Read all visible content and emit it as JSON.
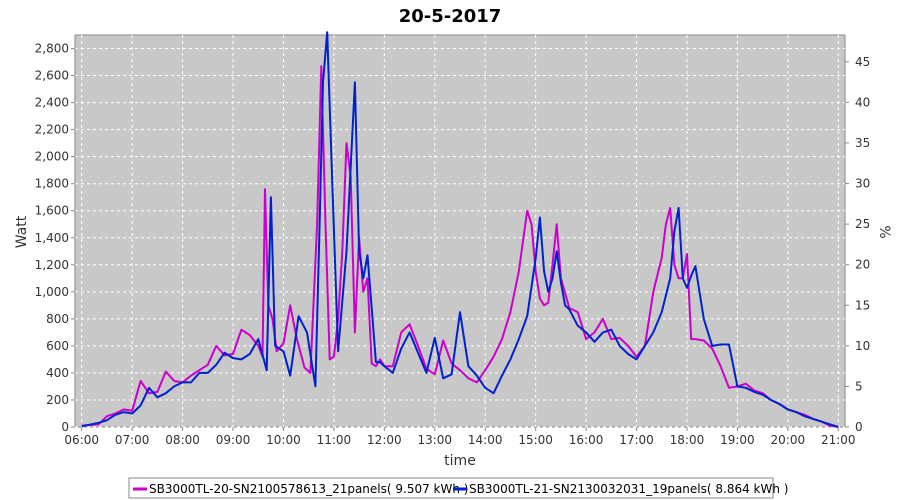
{
  "chart_data": {
    "type": "line",
    "title": "20-5-2017",
    "xlabel": "time",
    "ylabel": "Watt",
    "y2label": "%",
    "grid": true,
    "legend_position": "bottom",
    "xlim": [
      "05:52",
      "21:08"
    ],
    "ylim": [
      0,
      2900
    ],
    "y2lim": [
      0,
      48.3
    ],
    "x_ticks": [
      "06:00",
      "07:00",
      "08:00",
      "09:00",
      "10:00",
      "11:00",
      "12:00",
      "13:00",
      "14:00",
      "15:00",
      "16:00",
      "17:00",
      "18:00",
      "19:00",
      "20:00",
      "21:00"
    ],
    "y_ticks": [
      "0",
      "200",
      "400",
      "600",
      "800",
      "1,000",
      "1,200",
      "1,400",
      "1,600",
      "1,800",
      "2,000",
      "2,200",
      "2,400",
      "2,600",
      "2,800"
    ],
    "y2_ticks": [
      "0",
      "5",
      "10",
      "15",
      "20",
      "25",
      "30",
      "35",
      "40",
      "45"
    ],
    "colors": {
      "plot_bg": "#c8c8c8",
      "grid": "#ffffff"
    },
    "series": [
      {
        "name": "SB3000TL-20-SN2100578613_21panels( 9.507 kWh )",
        "color": "#cc00cc",
        "x": [
          "06:00",
          "06:20",
          "06:30",
          "06:40",
          "06:50",
          "07:00",
          "07:10",
          "07:20",
          "07:30",
          "07:40",
          "07:50",
          "08:00",
          "08:10",
          "08:20",
          "08:30",
          "08:40",
          "08:50",
          "09:00",
          "09:10",
          "09:20",
          "09:30",
          "09:35",
          "09:38",
          "09:42",
          "09:47",
          "09:52",
          "10:00",
          "10:08",
          "10:16",
          "10:25",
          "10:32",
          "10:40",
          "10:45",
          "10:50",
          "10:55",
          "11:00",
          "11:05",
          "11:10",
          "11:15",
          "11:20",
          "11:25",
          "11:30",
          "11:35",
          "11:40",
          "11:45",
          "11:50",
          "11:55",
          "12:00",
          "12:10",
          "12:20",
          "12:30",
          "12:40",
          "12:50",
          "13:00",
          "13:10",
          "13:20",
          "13:30",
          "13:40",
          "13:50",
          "14:00",
          "14:10",
          "14:20",
          "14:30",
          "14:40",
          "14:50",
          "14:55",
          "15:00",
          "15:05",
          "15:10",
          "15:15",
          "15:20",
          "15:25",
          "15:30",
          "15:40",
          "15:50",
          "16:00",
          "16:10",
          "16:20",
          "16:30",
          "16:40",
          "16:50",
          "17:00",
          "17:10",
          "17:20",
          "17:30",
          "17:35",
          "17:40",
          "17:45",
          "17:50",
          "17:55",
          "18:00",
          "18:05",
          "18:10",
          "18:20",
          "18:30",
          "18:40",
          "18:50",
          "19:00",
          "19:10",
          "19:20",
          "19:30",
          "19:40",
          "19:50",
          "20:00",
          "20:10",
          "20:20",
          "20:30",
          "20:40",
          "20:50",
          "21:00"
        ],
        "y": [
          10,
          20,
          80,
          100,
          130,
          120,
          340,
          250,
          260,
          410,
          340,
          330,
          380,
          420,
          460,
          600,
          530,
          540,
          720,
          680,
          600,
          520,
          1760,
          900,
          800,
          560,
          620,
          900,
          650,
          440,
          400,
          1500,
          2670,
          1500,
          500,
          520,
          800,
          1300,
          2100,
          1850,
          700,
          1400,
          1000,
          1100,
          470,
          450,
          500,
          450,
          450,
          700,
          760,
          600,
          430,
          390,
          640,
          470,
          420,
          360,
          330,
          420,
          520,
          650,
          850,
          1150,
          1600,
          1500,
          1150,
          950,
          900,
          920,
          1200,
          1500,
          1100,
          880,
          850,
          650,
          700,
          800,
          650,
          660,
          600,
          520,
          600,
          1000,
          1250,
          1500,
          1620,
          1200,
          1100,
          1100,
          1280,
          650,
          650,
          640,
          580,
          450,
          290,
          300,
          320,
          270,
          250,
          200,
          170,
          130,
          110,
          90,
          60,
          40,
          10,
          0
        ]
      },
      {
        "name": "SB3000TL-21-SN2130032031_19panels( 8.864 kWh )",
        "color": "#0022cc",
        "x": [
          "06:00",
          "06:20",
          "06:30",
          "06:40",
          "06:50",
          "07:00",
          "07:10",
          "07:20",
          "07:30",
          "07:40",
          "07:50",
          "08:00",
          "08:10",
          "08:20",
          "08:30",
          "08:40",
          "08:50",
          "09:00",
          "09:10",
          "09:20",
          "09:30",
          "09:40",
          "09:45",
          "09:50",
          "10:00",
          "10:08",
          "10:18",
          "10:28",
          "10:38",
          "10:43",
          "10:47",
          "10:52",
          "10:57",
          "11:05",
          "11:15",
          "11:25",
          "11:30",
          "11:35",
          "11:40",
          "11:45",
          "11:50",
          "11:55",
          "12:00",
          "12:10",
          "12:20",
          "12:30",
          "12:40",
          "12:50",
          "13:00",
          "13:10",
          "13:20",
          "13:30",
          "13:40",
          "13:50",
          "14:00",
          "14:10",
          "14:20",
          "14:30",
          "14:40",
          "14:50",
          "15:00",
          "15:05",
          "15:10",
          "15:15",
          "15:20",
          "15:25",
          "15:30",
          "15:35",
          "15:40",
          "15:50",
          "16:00",
          "16:10",
          "16:20",
          "16:30",
          "16:40",
          "16:50",
          "17:00",
          "17:10",
          "17:20",
          "17:30",
          "17:40",
          "17:45",
          "17:50",
          "17:55",
          "18:00",
          "18:05",
          "18:10",
          "18:20",
          "18:30",
          "18:40",
          "18:50",
          "19:00",
          "19:10",
          "19:20",
          "19:30",
          "19:40",
          "19:50",
          "20:00",
          "20:10",
          "20:20",
          "20:30",
          "20:40",
          "20:50",
          "21:00"
        ],
        "y": [
          5,
          30,
          50,
          90,
          110,
          100,
          160,
          290,
          220,
          250,
          300,
          330,
          330,
          400,
          400,
          460,
          550,
          510,
          500,
          540,
          650,
          420,
          1700,
          600,
          560,
          380,
          820,
          700,
          300,
          1500,
          2550,
          2920,
          2000,
          560,
          1300,
          2550,
          1300,
          1100,
          1270,
          880,
          480,
          480,
          450,
          400,
          580,
          700,
          550,
          400,
          660,
          360,
          390,
          850,
          450,
          380,
          290,
          250,
          380,
          500,
          650,
          820,
          1250,
          1550,
          1150,
          1000,
          1100,
          1300,
          1070,
          900,
          870,
          750,
          700,
          630,
          700,
          720,
          600,
          540,
          500,
          600,
          700,
          850,
          1100,
          1450,
          1620,
          1100,
          1030,
          1120,
          1190,
          800,
          600,
          610,
          610,
          300,
          290,
          260,
          240,
          200,
          170,
          130,
          110,
          80,
          60,
          40,
          20,
          0
        ]
      }
    ]
  }
}
